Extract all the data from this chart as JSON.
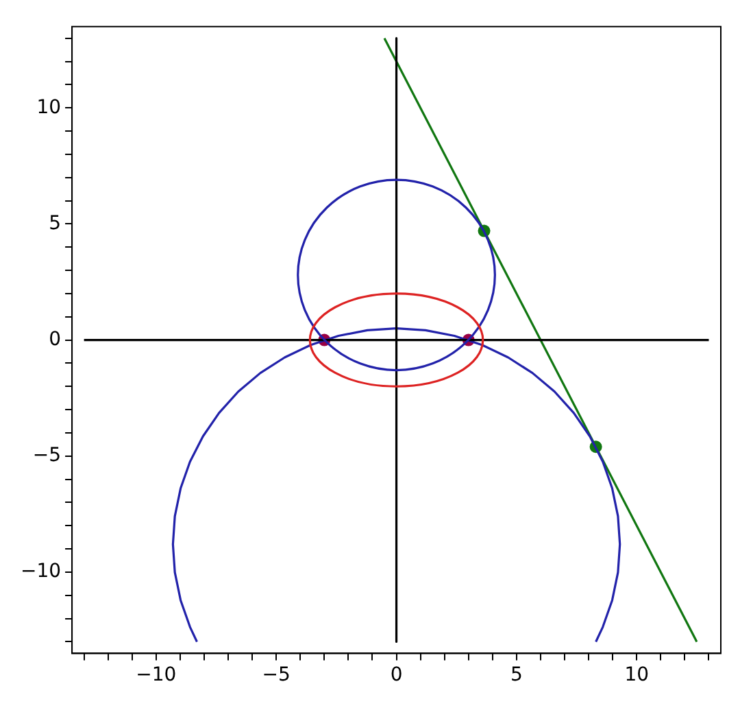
{
  "chart_data": {
    "type": "line",
    "xlim": [
      -13.5,
      13.5
    ],
    "ylim": [
      -13.5,
      13.5
    ],
    "xticks": [
      {
        "value": -13,
        "label": null
      },
      {
        "value": -12,
        "label": null
      },
      {
        "value": -11,
        "label": null
      },
      -10,
      {
        "value": -9,
        "label": null
      },
      {
        "value": -8,
        "label": null
      },
      {
        "value": -7,
        "label": null
      },
      {
        "value": -6,
        "label": null
      },
      -5,
      {
        "value": -4,
        "label": null
      },
      {
        "value": -3,
        "label": null
      },
      {
        "value": -2,
        "label": null
      },
      {
        "value": -1,
        "label": null
      },
      0,
      {
        "value": 1,
        "label": null
      },
      {
        "value": 2,
        "label": null
      },
      {
        "value": 3,
        "label": null
      },
      {
        "value": 4,
        "label": null
      },
      5,
      {
        "value": 6,
        "label": null
      },
      {
        "value": 7,
        "label": null
      },
      {
        "value": 8,
        "label": null
      },
      {
        "value": 9,
        "label": null
      },
      10,
      {
        "value": 11,
        "label": null
      },
      {
        "value": 12,
        "label": null
      },
      {
        "value": 13,
        "label": null
      }
    ],
    "yticks": [
      {
        "value": -13,
        "label": null
      },
      {
        "value": -12,
        "label": null
      },
      {
        "value": -11,
        "label": null
      },
      -10,
      {
        "value": -9,
        "label": null
      },
      {
        "value": -8,
        "label": null
      },
      {
        "value": -7,
        "label": null
      },
      {
        "value": -6,
        "label": null
      },
      -5,
      {
        "value": -4,
        "label": null
      },
      {
        "value": -3,
        "label": null
      },
      {
        "value": -2,
        "label": null
      },
      {
        "value": -1,
        "label": null
      },
      0,
      {
        "value": 1,
        "label": null
      },
      {
        "value": 2,
        "label": null
      },
      {
        "value": 3,
        "label": null
      },
      {
        "value": 4,
        "label": null
      },
      5,
      {
        "value": 6,
        "label": null
      },
      {
        "value": 7,
        "label": null
      },
      {
        "value": 8,
        "label": null
      },
      {
        "value": 9,
        "label": null
      },
      10,
      {
        "value": 11,
        "label": null
      },
      {
        "value": 12,
        "label": null
      },
      {
        "value": 13,
        "label": null
      }
    ],
    "grid": false,
    "legend": false,
    "line_style": "solid",
    "series": [
      {
        "type": "line",
        "color": "#000000",
        "x": [
          -13,
          13
        ],
        "values": [
          0,
          0
        ]
      },
      {
        "type": "line",
        "color": "#000000",
        "x": [
          0,
          0
        ],
        "values": [
          13,
          -13
        ]
      },
      {
        "type": "line",
        "color": "#2222aa",
        "x": [
          8.3,
          8.59,
          8.98,
          9.22,
          9.3,
          9.22,
          8.98,
          8.59,
          8.05,
          7.38,
          6.58,
          5.66,
          4.65,
          3.56,
          2.41,
          1.21,
          0,
          -1.21,
          -2.41,
          -3.56,
          -4.65,
          -5.66,
          -6.58,
          -7.38,
          -8.05,
          -8.59,
          -8.98,
          -9.22,
          -9.3,
          -9.22,
          -8.98,
          -8.59,
          -8.3
        ],
        "values": [
          -13,
          -12.36,
          -11.21,
          -10.01,
          -8.8,
          -7.59,
          -6.39,
          -5.24,
          -4.15,
          -3.14,
          -2.22,
          -1.42,
          -0.75,
          -0.21,
          0.18,
          0.42,
          0.5,
          0.42,
          0.18,
          -0.21,
          -0.75,
          -1.42,
          -2.22,
          -3.14,
          -4.15,
          -5.24,
          -6.39,
          -7.59,
          -8.8,
          -10.01,
          -11.21,
          -12.36,
          -13
        ]
      },
      {
        "type": "line",
        "color": "#117711",
        "x": [
          -0.5,
          12.5
        ],
        "values": [
          13,
          -13
        ]
      },
      {
        "type": "scatter",
        "color": "#990044",
        "marker": "circle",
        "x": [
          -3,
          3
        ],
        "values": [
          0,
          0
        ]
      },
      {
        "type": "scatter",
        "color": "#117711",
        "marker": "circle",
        "x": [
          3.65,
          8.3
        ],
        "values": [
          4.7,
          -4.6
        ]
      }
    ]
  }
}
